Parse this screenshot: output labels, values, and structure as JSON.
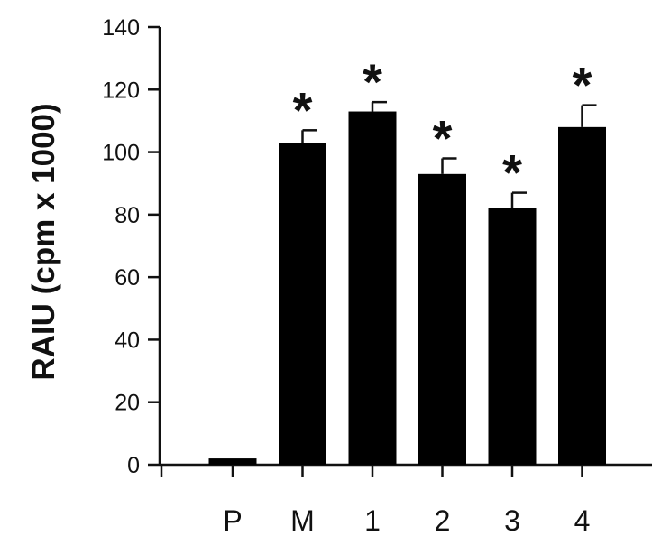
{
  "chart_data": {
    "type": "bar",
    "title": "",
    "xlabel": "",
    "ylabel": "RAIU (cpm x 1000)",
    "ylim": [
      0,
      140
    ],
    "yticks": [
      0,
      20,
      40,
      60,
      80,
      100,
      120,
      140
    ],
    "categories": [
      "P",
      "M",
      "1",
      "2",
      "3",
      "4"
    ],
    "values": [
      2,
      103,
      113,
      93,
      82,
      108
    ],
    "error_upper": [
      0,
      4,
      3,
      5,
      5,
      7
    ],
    "significance": [
      "",
      "*",
      "*",
      "*",
      "*",
      "*"
    ],
    "bar_color": "#000000",
    "grid": false,
    "legend": "none"
  }
}
